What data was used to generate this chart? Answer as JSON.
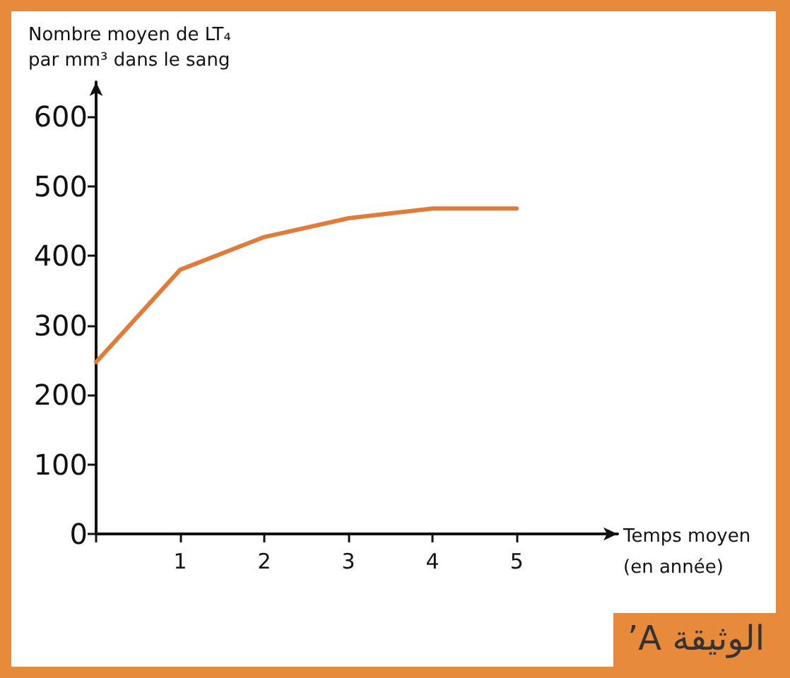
{
  "chart_data": {
    "type": "line",
    "ylabel": "Nombre moyen de LT₄\npar mm³ dans le sang",
    "xlabel": "Temps moyen\n(en année)",
    "annotations": [
      "الوثيقة A’"
    ],
    "x": [
      0,
      1,
      2,
      3,
      4,
      5
    ],
    "series": [
      {
        "color": "#e07b39",
        "values": [
          247,
          380,
          427,
          454,
          468,
          468
        ]
      }
    ],
    "xlim": [
      0,
      6.2
    ],
    "xticks": [
      {
        "value": 0,
        "label": null
      },
      1,
      2,
      3,
      4,
      5
    ],
    "ylim": [
      0,
      650
    ],
    "yticks": [
      0,
      100,
      200,
      300,
      400,
      500,
      600
    ],
    "grid": false,
    "marker": "none",
    "line_style": "solid"
  }
}
